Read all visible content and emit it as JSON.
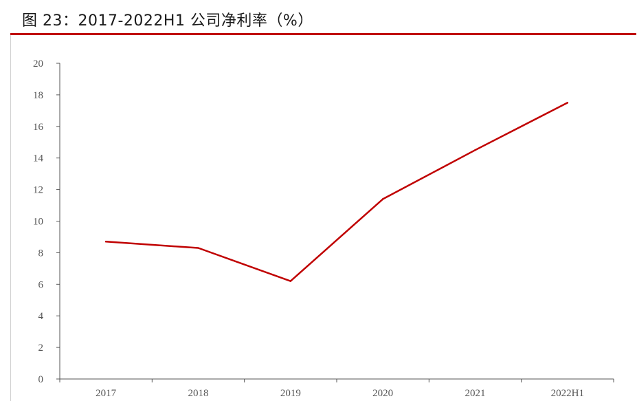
{
  "figure": {
    "title": "图 23：2017-2022H1 公司净利率（%）"
  },
  "colors": {
    "accent": "#c00000",
    "line": "#c00000",
    "axis": "#555555",
    "text": "#555555"
  },
  "chart_data": {
    "type": "line",
    "title": "",
    "xlabel": "",
    "ylabel": "",
    "categories": [
      "2017",
      "2018",
      "2019",
      "2020",
      "2021",
      "2022H1"
    ],
    "series": [
      {
        "values": [
          8.7,
          8.3,
          6.2,
          11.4,
          14.5,
          17.5
        ]
      }
    ],
    "ylim": [
      0,
      20
    ],
    "yticks": [
      "0",
      "2",
      "4",
      "6",
      "8",
      "10",
      "12",
      "14",
      "16",
      "18",
      "20"
    ],
    "grid": false,
    "legend": "none"
  }
}
